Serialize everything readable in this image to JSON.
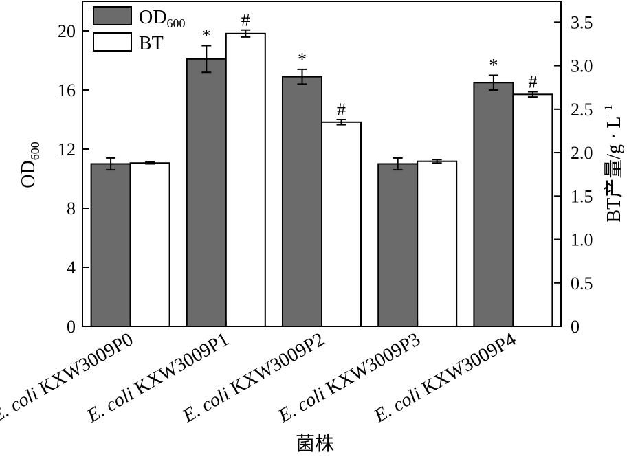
{
  "chart_data": {
    "type": "bar",
    "title": "",
    "xlabel": "菌株",
    "ylabel_left": {
      "main": "OD",
      "sub": "600"
    },
    "ylabel_right": {
      "prefix": "BT产量/g · L",
      "sup": "−1"
    },
    "categories": [
      {
        "species": "E. coli",
        "strain": "KXW3009P0"
      },
      {
        "species": "E. coli",
        "strain": "KXW3009P1"
      },
      {
        "species": "E. coli",
        "strain": "KXW3009P2"
      },
      {
        "species": "E. coli",
        "strain": "KXW3009P3"
      },
      {
        "species": "E. coli",
        "strain": "KXW3009P4"
      }
    ],
    "series": [
      {
        "name": "OD600",
        "legend_main": "OD",
        "legend_sub": "600",
        "axis": "left",
        "color": "#6b6b6b",
        "values": [
          11.0,
          18.1,
          16.9,
          11.0,
          16.5
        ],
        "errors": [
          0.4,
          0.9,
          0.5,
          0.4,
          0.5
        ],
        "markers": [
          "",
          "*",
          "*",
          "",
          "*"
        ]
      },
      {
        "name": "BT",
        "legend_main": "BT",
        "legend_sub": "",
        "axis": "right",
        "color": "#ffffff",
        "values": [
          1.88,
          3.37,
          2.35,
          1.9,
          2.67
        ],
        "errors": [
          0.01,
          0.04,
          0.03,
          0.02,
          0.03
        ],
        "markers": [
          "",
          "#",
          "#",
          "",
          "#"
        ]
      }
    ],
    "ylim_left": [
      0,
      22
    ],
    "yticks_left": [
      0,
      4,
      8,
      12,
      16,
      20
    ],
    "ylim_right": [
      0,
      3.74
    ],
    "yticks_right": [
      "0",
      "0.5",
      "1.0",
      "1.5",
      "2.0",
      "2.5",
      "3.0",
      "3.5"
    ],
    "legend_position": "top-left"
  }
}
